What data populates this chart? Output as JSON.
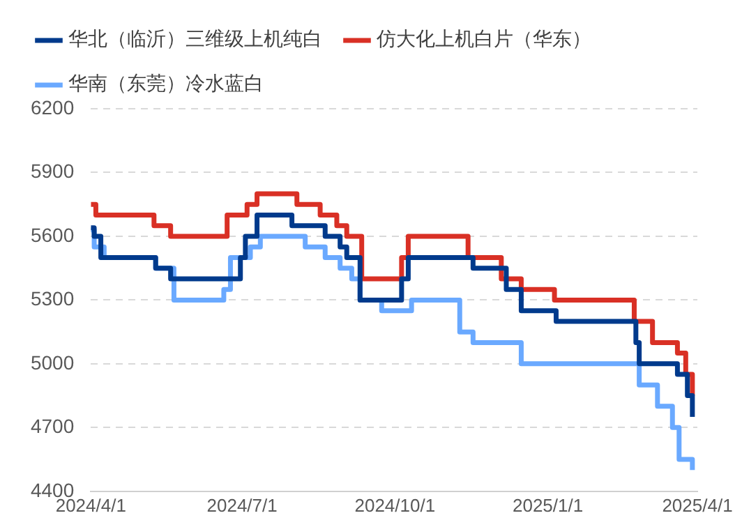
{
  "chart_data": {
    "type": "step",
    "legend": "top left",
    "grid": "y",
    "line_style": "solid",
    "marker": "none",
    "xlim": [
      "2024-04-01",
      "2025-04-01"
    ],
    "xticks": [
      {
        "value": "2024-04-01",
        "label": "2024/4/1"
      },
      {
        "value": "2024-07-01",
        "label": "2024/7/1"
      },
      {
        "value": "2024-10-01",
        "label": "2024/10/1"
      },
      {
        "value": "2025-01-01",
        "label": "2025/1/1"
      },
      {
        "value": "2025-04-01",
        "label": "2025/4/1"
      }
    ],
    "ylim": [
      4400,
      6200
    ],
    "yticks": [
      4400,
      4700,
      5000,
      5300,
      5600,
      5900,
      6200
    ],
    "series": [
      {
        "name": "华北（临沂）三维级上机纯白",
        "color": "#003a8c",
        "x": [
          "2024-04-01",
          "2024-04-03",
          "2024-04-07",
          "2024-05-10",
          "2024-05-19",
          "2024-06-30",
          "2024-07-03",
          "2024-07-10",
          "2024-07-31",
          "2024-08-20",
          "2024-08-29",
          "2024-09-02",
          "2024-09-10",
          "2024-10-05",
          "2024-10-09",
          "2024-11-17",
          "2024-12-07",
          "2024-12-16",
          "2025-01-06",
          "2025-02-23",
          "2025-02-25",
          "2025-03-20",
          "2025-03-26",
          "2025-03-29"
        ],
        "values": [
          5640,
          5600,
          5500,
          5450,
          5400,
          5500,
          5600,
          5700,
          5650,
          5600,
          5550,
          5500,
          5300,
          5400,
          5500,
          5450,
          5350,
          5250,
          5200,
          5100,
          5000,
          4950,
          4850,
          4750
        ]
      },
      {
        "name": "仿大化上机白片（华东）",
        "color": "#d93025",
        "x": [
          "2024-04-01",
          "2024-04-04",
          "2024-05-09",
          "2024-05-19",
          "2024-06-22",
          "2024-07-04",
          "2024-07-10",
          "2024-08-03",
          "2024-08-17",
          "2024-08-27",
          "2024-09-02",
          "2024-09-11",
          "2024-10-05",
          "2024-10-09",
          "2024-11-14",
          "2024-12-04",
          "2024-12-16",
          "2025-01-05",
          "2025-02-22",
          "2025-03-05",
          "2025-03-20",
          "2025-03-25",
          "2025-03-29"
        ],
        "values": [
          5750,
          5700,
          5650,
          5600,
          5700,
          5750,
          5800,
          5750,
          5700,
          5650,
          5600,
          5400,
          5500,
          5600,
          5500,
          5400,
          5350,
          5300,
          5200,
          5100,
          5050,
          4950,
          4850
        ]
      },
      {
        "name": "华南（东莞）冷水蓝白",
        "color": "#6aa9ff",
        "x": [
          "2024-04-01",
          "2024-04-03",
          "2024-04-09",
          "2024-05-10",
          "2024-05-21",
          "2024-06-20",
          "2024-06-24",
          "2024-07-06",
          "2024-07-12",
          "2024-08-08",
          "2024-08-20",
          "2024-08-29",
          "2024-09-05",
          "2024-09-10",
          "2024-09-23",
          "2024-10-11",
          "2024-11-09",
          "2024-11-17",
          "2024-12-16",
          "2025-02-25",
          "2025-03-08",
          "2025-03-17",
          "2025-03-21",
          "2025-03-29"
        ],
        "values": [
          5630,
          5550,
          5500,
          5450,
          5300,
          5350,
          5500,
          5550,
          5600,
          5550,
          5500,
          5450,
          5400,
          5300,
          5250,
          5300,
          5150,
          5100,
          5000,
          4900,
          4800,
          4700,
          4550,
          4500
        ]
      }
    ]
  }
}
